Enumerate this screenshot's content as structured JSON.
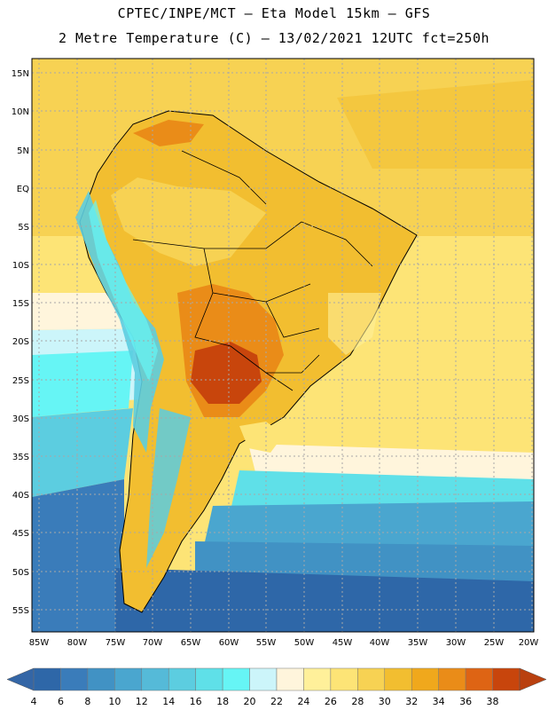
{
  "header": {
    "line1": "CPTEC/INPE/MCT —  Eta Model 15km — GFS",
    "line2": "2 Metre Temperature (C) — 13/02/2021 12UTC fct=250h"
  },
  "axes": {
    "lat_labels": [
      "15N",
      "10N",
      "5N",
      "EQ",
      "5S",
      "10S",
      "15S",
      "20S",
      "25S",
      "30S",
      "35S",
      "40S",
      "45S",
      "50S",
      "55S"
    ],
    "lon_labels": [
      "85W",
      "80W",
      "75W",
      "70W",
      "65W",
      "60W",
      "55W",
      "50W",
      "45W",
      "40W",
      "35W",
      "30W",
      "25W",
      "20W"
    ]
  },
  "colorbar": {
    "values": [
      "4",
      "6",
      "8",
      "10",
      "12",
      "14",
      "16",
      "18",
      "20",
      "22",
      "24",
      "26",
      "28",
      "30",
      "32",
      "34",
      "36",
      "38"
    ],
    "colors": [
      "#2e67a8",
      "#3a7cba",
      "#4192c4",
      "#4aa6cf",
      "#55bad8",
      "#5ccde0",
      "#5fe0e8",
      "#66f5f5",
      "#ccf5fa",
      "#fff5dc",
      "#fff09a",
      "#fde476",
      "#f7d253",
      "#f2be30",
      "#f0a81c",
      "#ea8c18",
      "#de6414",
      "#c8450c"
    ],
    "left_arrow_color": "#3466a6",
    "right_arrow_color": "#b9400f"
  }
}
